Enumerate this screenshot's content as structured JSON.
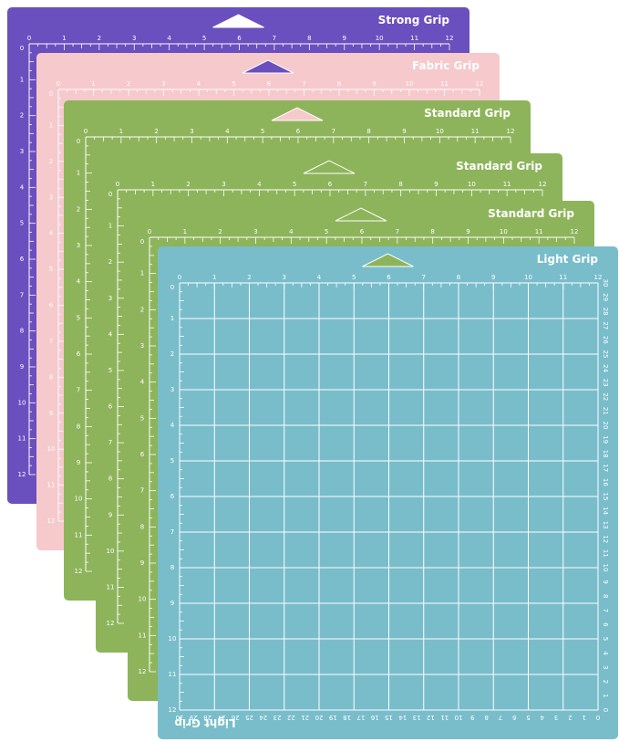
{
  "mats": [
    {
      "label": "Strong Grip",
      "color": "#6a4fbe"
    },
    {
      "label": "Fabric Grip",
      "color": "#f6c9cc"
    },
    {
      "label": "Standard Grip",
      "color": "#8eb45b"
    },
    {
      "label": "Standard Grip",
      "color": "#8eb45b"
    },
    {
      "label": "Standard Grip",
      "color": "#8eb45b"
    },
    {
      "label": "Light Grip",
      "color": "#79bdcb"
    }
  ],
  "inch_marks": [
    "0",
    "1",
    "2",
    "3",
    "4",
    "5",
    "6",
    "7",
    "8",
    "9",
    "10",
    "11",
    "12"
  ],
  "cm_marks": [
    "0",
    "1",
    "2",
    "3",
    "4",
    "5",
    "6",
    "7",
    "8",
    "9",
    "10",
    "11",
    "12",
    "13",
    "14",
    "15",
    "16",
    "17",
    "18",
    "19",
    "20",
    "21",
    "22",
    "23",
    "24",
    "25",
    "26",
    "27",
    "28",
    "29",
    "30"
  ]
}
